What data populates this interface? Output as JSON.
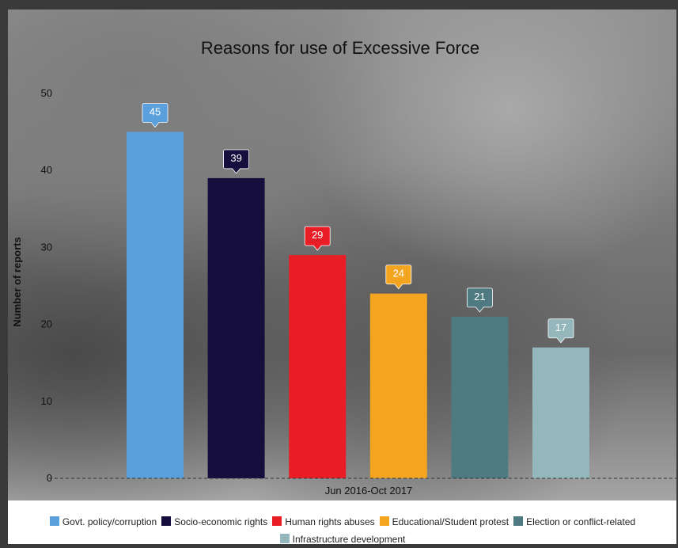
{
  "chart_data": {
    "type": "bar",
    "title": "Reasons for use of Excessive Force",
    "ylabel": "Number of reports",
    "xlabel": "Jun 2016-Oct 2017",
    "ylim": [
      0,
      50
    ],
    "yticks": [
      "0",
      "10",
      "20",
      "30",
      "40",
      "50"
    ],
    "series": [
      {
        "name": "Govt. policy/corruption",
        "value": 45,
        "color": "#5aa0dc"
      },
      {
        "name": "Socio-economic rights",
        "value": 39,
        "color": "#160f3d"
      },
      {
        "name": "Human rights abuses",
        "value": 29,
        "color": "#e81d25"
      },
      {
        "name": "Educational/Student protest",
        "value": 24,
        "color": "#f3a520"
      },
      {
        "name": "Election or conflict-related",
        "value": 21,
        "color": "#4f7a82"
      },
      {
        "name": "Infrastructure development",
        "value": 17,
        "color": "#93b7bb"
      }
    ],
    "legend_position": "bottom",
    "grid": false
  }
}
